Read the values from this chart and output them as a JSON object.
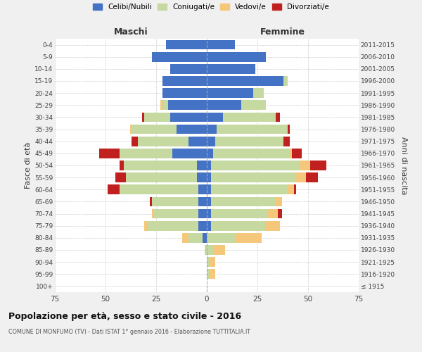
{
  "age_groups": [
    "100+",
    "95-99",
    "90-94",
    "85-89",
    "80-84",
    "75-79",
    "70-74",
    "65-69",
    "60-64",
    "55-59",
    "50-54",
    "45-49",
    "40-44",
    "35-39",
    "30-34",
    "25-29",
    "20-24",
    "15-19",
    "10-14",
    "5-9",
    "0-4"
  ],
  "birth_years": [
    "≤ 1915",
    "1916-1920",
    "1921-1925",
    "1926-1930",
    "1931-1935",
    "1936-1940",
    "1941-1945",
    "1946-1950",
    "1951-1955",
    "1956-1960",
    "1961-1965",
    "1966-1970",
    "1971-1975",
    "1976-1980",
    "1981-1985",
    "1986-1990",
    "1991-1995",
    "1996-2000",
    "2001-2005",
    "2006-2010",
    "2011-2015"
  ],
  "colors": {
    "celibe": "#4472C4",
    "coniugato": "#C5D9A0",
    "vedovo": "#F5C77A",
    "divorziato": "#C0211F"
  },
  "maschi": {
    "celibe": [
      0,
      0,
      0,
      0,
      2,
      4,
      4,
      4,
      4,
      5,
      5,
      17,
      9,
      15,
      18,
      19,
      22,
      22,
      18,
      27,
      20
    ],
    "coniugato": [
      0,
      0,
      0,
      1,
      7,
      25,
      22,
      23,
      39,
      35,
      36,
      26,
      25,
      22,
      13,
      3,
      0,
      0,
      0,
      0,
      0
    ],
    "vedovo": [
      0,
      0,
      0,
      0,
      3,
      2,
      1,
      0,
      0,
      0,
      0,
      0,
      0,
      1,
      0,
      1,
      0,
      0,
      0,
      0,
      0
    ],
    "divorziato": [
      0,
      0,
      0,
      0,
      0,
      0,
      0,
      1,
      6,
      5,
      2,
      10,
      3,
      0,
      1,
      0,
      0,
      0,
      0,
      0,
      0
    ]
  },
  "femmine": {
    "nubile": [
      0,
      0,
      0,
      0,
      0,
      2,
      2,
      2,
      2,
      2,
      2,
      3,
      4,
      5,
      8,
      17,
      23,
      38,
      24,
      29,
      14
    ],
    "coniugata": [
      0,
      1,
      1,
      3,
      14,
      27,
      28,
      32,
      38,
      42,
      44,
      38,
      34,
      35,
      26,
      12,
      5,
      2,
      0,
      0,
      0
    ],
    "vedova": [
      0,
      3,
      3,
      6,
      13,
      7,
      5,
      3,
      3,
      5,
      5,
      1,
      0,
      0,
      0,
      0,
      0,
      0,
      0,
      0,
      0
    ],
    "divorziata": [
      0,
      0,
      0,
      0,
      0,
      0,
      2,
      0,
      1,
      6,
      8,
      5,
      3,
      1,
      2,
      0,
      0,
      0,
      0,
      0,
      0
    ]
  },
  "xlim": 75,
  "title": "Popolazione per età, sesso e stato civile - 2016",
  "subtitle": "COMUNE DI MONFUMO (TV) - Dati ISTAT 1° gennaio 2016 - Elaborazione TUTTITALIA.IT",
  "ylabel_left": "Fasce di età",
  "ylabel_right": "Anni di nascita",
  "xlabel_maschi": "Maschi",
  "xlabel_femmine": "Femmine",
  "legend_labels": [
    "Celibi/Nubili",
    "Coniugati/e",
    "Vedovi/e",
    "Divorziati/e"
  ],
  "bg_color": "#f0f0f0",
  "plot_bg_color": "#ffffff"
}
